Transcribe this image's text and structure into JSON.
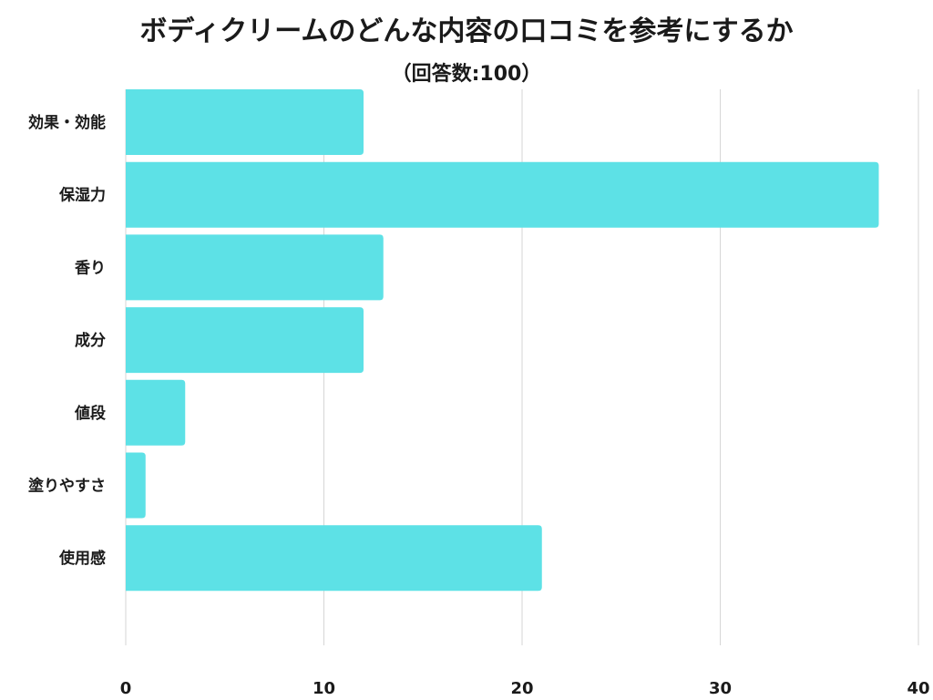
{
  "chart_data": {
    "type": "bar",
    "orientation": "horizontal",
    "title": "ボディクリームのどんな内容の口コミを参考にするか",
    "subtitle": "（回答数:100）",
    "categories": [
      "効果・効能",
      "保湿力",
      "香り",
      "成分",
      "値段",
      "塗りやすさ",
      "使用感"
    ],
    "values": [
      12,
      38,
      13,
      12,
      3,
      1,
      21
    ],
    "xlim": [
      0,
      40
    ],
    "xticks": [
      0,
      10,
      20,
      30,
      40
    ],
    "grid": true,
    "legend": "none",
    "bar_color": "#5de1e6"
  }
}
